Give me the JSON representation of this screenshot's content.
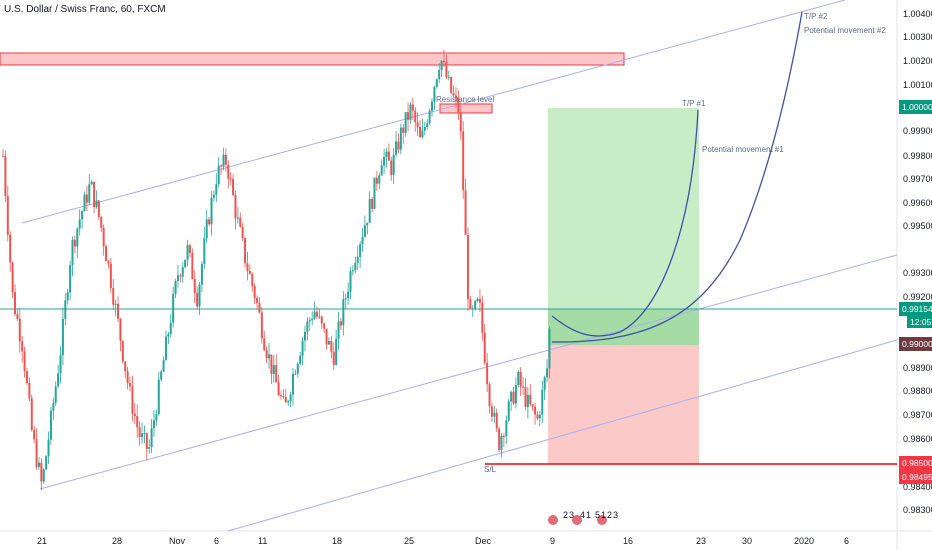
{
  "title": "U.S. Dollar / Swiss Franc, 60, FXCM",
  "chart_data": {
    "type": "candlestick",
    "symbol": "USDCHF",
    "interval": "60",
    "source": "FXCM",
    "ylim": [
      0.9825,
      1.0052
    ],
    "price_ticks": [
      "1.00400",
      "1.00300",
      "1.00200",
      "1.00100",
      "0.99900",
      "0.99800",
      "0.99700",
      "0.99600",
      "0.99500",
      "0.99300",
      "0.99200",
      "0.98900",
      "0.98800",
      "0.98700",
      "0.98600",
      "0.98400",
      "0.98300"
    ],
    "x_ticks": [
      "21",
      "28",
      "Nov",
      "6",
      "11",
      "18",
      "25",
      "Dec",
      "9",
      "16",
      "23",
      "30",
      "2020",
      "6"
    ],
    "series": [
      {
        "path": [
          [
            0,
            0.998
          ],
          [
            1.5,
            0.992
          ],
          [
            3,
            0.99
          ],
          [
            4.5,
            0.9862
          ],
          [
            6,
            0.984
          ],
          [
            7.5,
            0.987
          ],
          [
            9,
            0.99
          ],
          [
            10.5,
            0.994
          ],
          [
            12,
            0.9955
          ],
          [
            13.5,
            0.9968
          ],
          [
            15,
            0.9952
          ],
          [
            16.5,
            0.993
          ],
          [
            18,
            0.9905
          ],
          [
            19.5,
            0.988
          ],
          [
            21,
            0.9862
          ],
          [
            22.5,
            0.9855
          ],
          [
            24,
            0.988
          ],
          [
            25.5,
            0.9905
          ],
          [
            27,
            0.993
          ],
          [
            28.5,
            0.994
          ],
          [
            30,
            0.992
          ],
          [
            31.5,
            0.995
          ],
          [
            33,
            0.9972
          ],
          [
            34.5,
            0.9978
          ],
          [
            36,
            0.9955
          ],
          [
            37.5,
            0.9935
          ],
          [
            39,
            0.992
          ],
          [
            40.5,
            0.99
          ],
          [
            42,
            0.9885
          ],
          [
            43.5,
            0.9872
          ],
          [
            45,
            0.989
          ],
          [
            46.5,
            0.9905
          ],
          [
            48,
            0.9915
          ],
          [
            49.5,
            0.9905
          ],
          [
            51,
            0.9895
          ],
          [
            52.5,
            0.9915
          ],
          [
            54,
            0.9935
          ],
          [
            55.5,
            0.9948
          ],
          [
            57,
            0.9962
          ],
          [
            58.5,
            0.998
          ],
          [
            60,
            0.9975
          ],
          [
            61.5,
            0.999
          ],
          [
            63,
            1.0
          ],
          [
            64.5,
            0.9985
          ],
          [
            66,
            1.0003
          ],
          [
            67.5,
            1.0022
          ],
          [
            69,
            1.0008
          ],
          [
            70.5,
            0.9998
          ],
          [
            72,
            0.991
          ],
          [
            73.5,
            0.9918
          ],
          [
            75,
            0.988
          ],
          [
            76.5,
            0.9858
          ],
          [
            78,
            0.9872
          ],
          [
            79.5,
            0.9885
          ],
          [
            81,
            0.9875
          ],
          [
            82.5,
            0.9868
          ],
          [
            84,
            0.989
          ],
          [
            84.6,
            0.9917
          ]
        ]
      }
    ],
    "horizontal_lines": [
      {
        "value": 0.99154,
        "label": "0.99154"
      },
      {
        "value": 0.98495,
        "label": "0.98495"
      }
    ],
    "price_labels": [
      {
        "value": 1.0,
        "text": "1.00000"
      },
      {
        "value": 0.99154,
        "text": "0.99154"
      },
      {
        "text": "12:05"
      },
      {
        "value": 0.99,
        "text": "0.99000"
      },
      {
        "value": 0.985,
        "text": "0.98500"
      },
      {
        "value": 0.98495,
        "text": "0.98495"
      }
    ],
    "annotations": [
      "Resistance level",
      "T/P #1",
      "Potential movement #1",
      "T/P #2",
      "Potential movement #2",
      "S/L"
    ],
    "event_markers": [
      "2",
      "3",
      "4",
      "1",
      "5",
      "1",
      "2",
      "3"
    ],
    "grid": false
  },
  "colors": {
    "up": "#26a69a",
    "down": "#ef5350",
    "channel": "#a9aef5",
    "curve": "#3f51a8",
    "price_line": "#26a69a",
    "sl_line": "#ff0000",
    "last_price_tag": "#089981",
    "tp_tag": "#089981",
    "entry_tag": "#6d3a42",
    "sl_tag": "#f23645",
    "tp_zone": "#c7ecc6",
    "sl_zone": "#fcc9c9",
    "resist_zone": "#ffc7c7",
    "resist_border": "#f23645",
    "axis_bg": "#ffffff"
  }
}
